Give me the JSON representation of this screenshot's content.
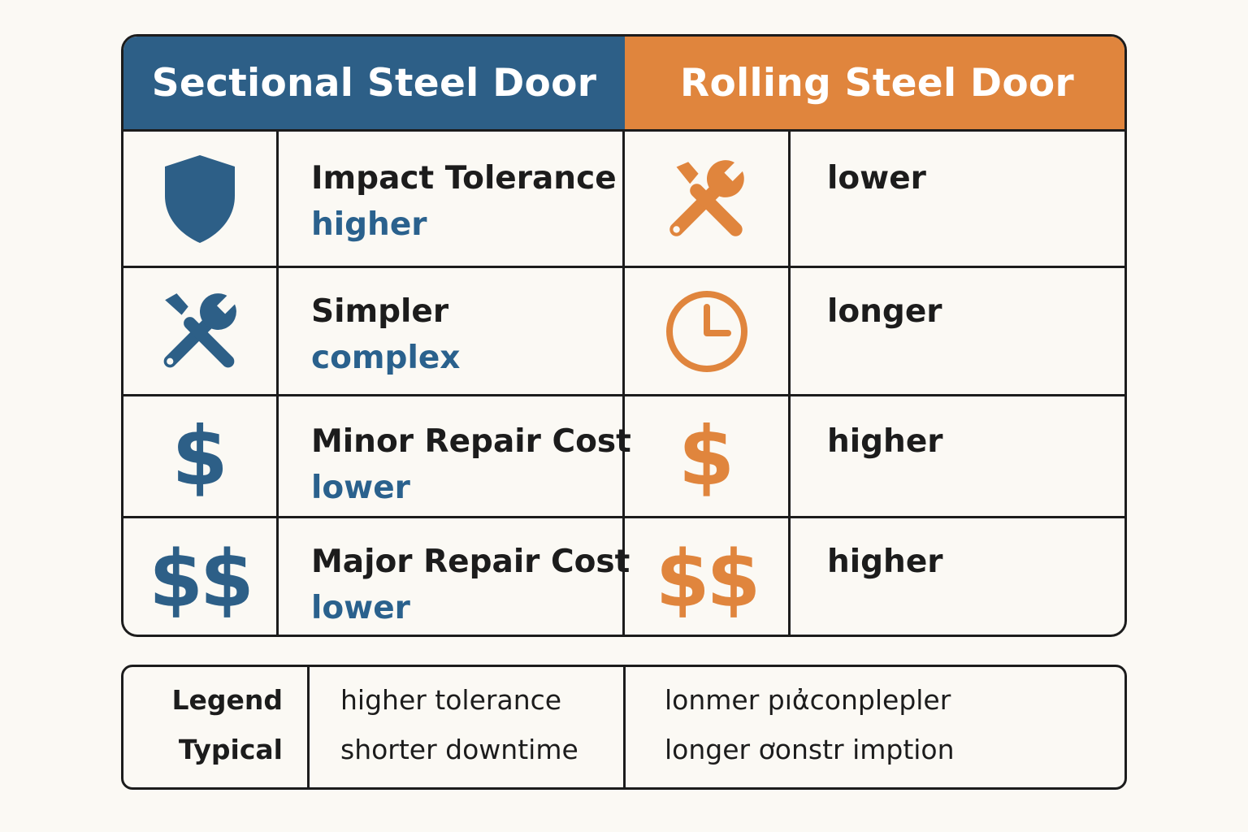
{
  "colors": {
    "blue": "#2d5f87",
    "orange": "#e0853d",
    "sub_text_blue": "#2a618d"
  },
  "headers": {
    "left": "Sectional Steel Door",
    "right": "Rolling Steel Door"
  },
  "rows": [
    {
      "left_icon": "shield-icon",
      "left_label": "Impact Tolerance",
      "left_value": "higher",
      "right_icon": "wrench-screwdriver-icon",
      "right_value": "lower"
    },
    {
      "left_icon": "wrench-screwdriver-icon",
      "left_label": "Simpler",
      "left_value": "complex",
      "right_icon": "clock-icon",
      "right_value": "longer"
    },
    {
      "left_icon": "dollar-icon",
      "left_glyph": "$",
      "left_label": "Minor Repair Cost",
      "left_value": "lower",
      "right_icon": "dollar-icon",
      "right_glyph": "$",
      "right_value": "higher"
    },
    {
      "left_icon": "double-dollar-icon",
      "left_glyph": "$$",
      "left_label": "Major Repair Cost",
      "left_value": "lower",
      "right_icon": "double-dollar-icon",
      "right_glyph": "$$",
      "right_value": "higher"
    }
  ],
  "legend": {
    "labels": [
      "Legend",
      "Typical"
    ],
    "left": [
      "higher tolerance",
      "shorter downtime"
    ],
    "right": [
      "lonmer pıἀconplepler",
      "longer ơonstr imption"
    ]
  }
}
